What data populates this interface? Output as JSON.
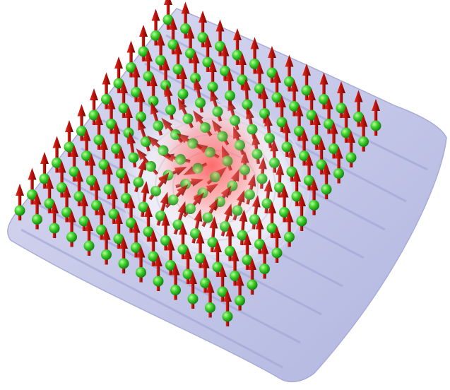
{
  "image": {
    "subject": "skyrmion-spin-lattice",
    "colors": {
      "background": "#ffffff",
      "surface": "#c9cbe6",
      "surface_edge": "#9aa0d0",
      "arrow": "#c0140c",
      "arrow_dark": "#7a0a06",
      "sphere": "#39d02a",
      "sphere_dark": "#138a10",
      "glow": "#ff5a5a"
    },
    "lattice": {
      "rows": 13,
      "cols": 13
    }
  }
}
